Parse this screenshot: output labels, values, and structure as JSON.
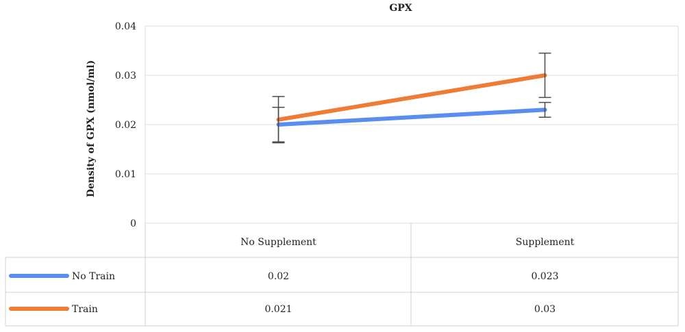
{
  "chart_data": {
    "type": "line",
    "title": "GPX",
    "xlabel": "",
    "ylabel": "Density of GPX (nmol/ml)",
    "categories": [
      "No Supplement",
      "Supplement"
    ],
    "ylim": [
      0,
      0.04
    ],
    "yticks": [
      0,
      0.01,
      0.02,
      0.03,
      0.04
    ],
    "ytick_labels": [
      "0",
      "0.01",
      "0.02",
      "0.03",
      "0.04"
    ],
    "grid": true,
    "legend": "data-table",
    "series": [
      {
        "name": "No Train",
        "color": "#5b8def",
        "values": [
          0.02,
          0.023
        ],
        "value_labels": [
          "0.02",
          "0.023"
        ],
        "error": [
          0.0035,
          0.0015
        ]
      },
      {
        "name": "Train",
        "color": "#f07b34",
        "values": [
          0.021,
          0.03
        ],
        "value_labels": [
          "0.021",
          "0.03"
        ],
        "error": [
          0.0047,
          0.0045
        ]
      }
    ]
  }
}
